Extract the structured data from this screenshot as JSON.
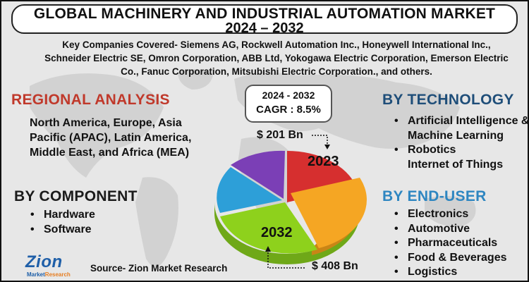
{
  "title": {
    "line1": "GLOBAL MACHINERY AND INDUSTRIAL AUTOMATION MARKET",
    "line2": "2024 – 2032"
  },
  "companies_text": "Key Companies Covered- Siemens AG, Rockwell Automation Inc., Honeywell International Inc., Schneider Electric SE, Omron Corporation, ABB Ltd, Yokogawa Electric Corporation, Emerson Electric Co., Fanuc Corporation, Mitsubishi Electric Corporation., and others.",
  "regional": {
    "heading": "REGIONAL ANALYSIS",
    "text": "North America, Europe, Asia Pacific (APAC), Latin America, Middle East, and Africa (MEA)"
  },
  "component": {
    "heading": "BY  COMPONENT",
    "items": [
      "Hardware",
      "Software"
    ]
  },
  "technology": {
    "heading": "BY TECHNOLOGY",
    "items": [
      "Artificial Intelligence & Machine Learning",
      "Robotics"
    ],
    "extra_line": "Internet of Things"
  },
  "end_user": {
    "heading": "BY END-USER",
    "items": [
      "Electronics",
      "Automotive",
      "Pharmaceuticals",
      "Food & Beverages",
      "Logistics"
    ]
  },
  "cagr": {
    "years": "2024 - 2032",
    "value": "CAGR : 8.5%"
  },
  "values": {
    "start": "$ 201 Bn",
    "end": "$ 408 Bn"
  },
  "pie_labels": {
    "start_year": "2023",
    "end_year": "2032"
  },
  "source": "Source- Zion Market Research",
  "logo": {
    "main": "Zion",
    "sub_left": "Market",
    "sub_right": "Research"
  },
  "colors": {
    "regional_heading": "#c0392b",
    "technology_heading": "#1f4e79",
    "end_user_heading": "#2e86c1",
    "slice_red": "#d62f2f",
    "slice_orange": "#f5a623",
    "slice_green": "#8ed11c",
    "slice_blue": "#2d9fd8",
    "slice_purple": "#7b3fb6"
  }
}
